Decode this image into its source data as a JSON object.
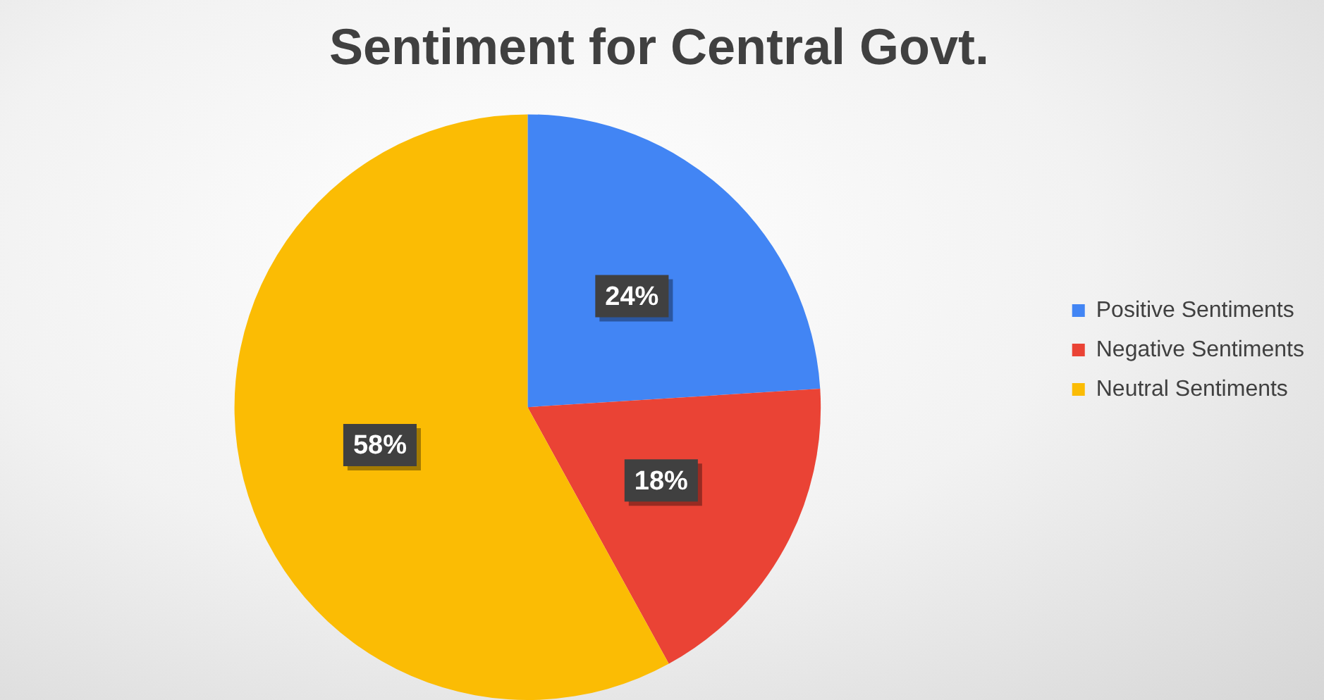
{
  "chart_data": {
    "type": "pie",
    "title": "Sentiment for Central Govt.",
    "categories": [
      "Positive Sentiments",
      "Negative Sentiments",
      "Neutral Sentiments"
    ],
    "values": [
      24,
      18,
      58
    ],
    "colors": [
      "#4285f4",
      "#ea4335",
      "#fbbc04"
    ],
    "value_labels": [
      "24%",
      "18%",
      "58%"
    ],
    "legend": "right"
  }
}
